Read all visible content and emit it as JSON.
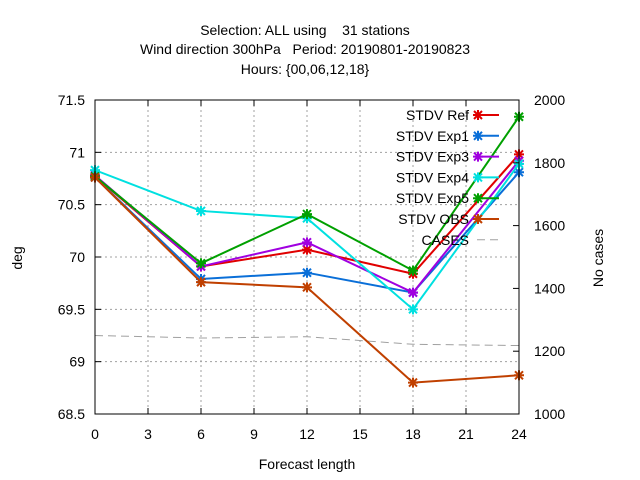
{
  "header": {
    "line1": "Selection: ALL using    31 stations",
    "line2": "Wind direction 300hPa   Period: 20190801-20190823",
    "line3": "Hours: {00,06,12,18}"
  },
  "chart_data": {
    "type": "line",
    "title": "Selection: ALL using    31 stations\nWind direction 300hPa   Period: 20190801-20190823\nHours: {00,06,12,18}",
    "xlabel": "Forecast length",
    "ylabel": "deg",
    "y2label": "No cases",
    "xlim": [
      0,
      24
    ],
    "ylim": [
      68.5,
      71.5
    ],
    "y2lim": [
      1000,
      2000
    ],
    "xticks": [
      "0",
      "3",
      "6",
      "9",
      "12",
      "15",
      "18",
      "21",
      "24"
    ],
    "yticks": [
      "68.5",
      "69",
      "69.5",
      "70",
      "70.5",
      "71",
      "71.5"
    ],
    "y2ticks": [
      "1000",
      "1200",
      "1400",
      "1600",
      "1800",
      "2000"
    ],
    "grid": true,
    "legend_position": "top-right",
    "x": [
      0,
      6,
      12,
      18,
      24
    ],
    "series": [
      {
        "name": "STDV Ref",
        "color": "#e00000",
        "values": [
          70.77,
          69.91,
          70.07,
          69.84,
          70.98
        ]
      },
      {
        "name": "STDV Exp1",
        "color": "#0a6fd8",
        "values": [
          70.76,
          69.79,
          69.85,
          69.66,
          70.81
        ]
      },
      {
        "name": "STDV Exp3",
        "color": "#a000e0",
        "values": [
          70.78,
          69.91,
          70.14,
          69.66,
          70.92
        ]
      },
      {
        "name": "STDV Exp4",
        "color": "#00e0e0",
        "values": [
          70.83,
          70.44,
          70.37,
          69.5,
          70.89
        ]
      },
      {
        "name": "STDV Exp5",
        "color": "#00a000",
        "values": [
          70.77,
          69.94,
          70.41,
          69.87,
          71.34
        ]
      },
      {
        "name": "STDV OBS",
        "color": "#c04000",
        "values": [
          70.76,
          69.76,
          69.71,
          68.8,
          68.87
        ]
      }
    ],
    "cases": {
      "name": "CASES",
      "color": "#a0a0a0",
      "axis": "y2",
      "x": [
        0,
        6,
        12,
        18,
        24
      ],
      "values": [
        1250,
        1242,
        1246,
        1222,
        1218
      ]
    }
  }
}
